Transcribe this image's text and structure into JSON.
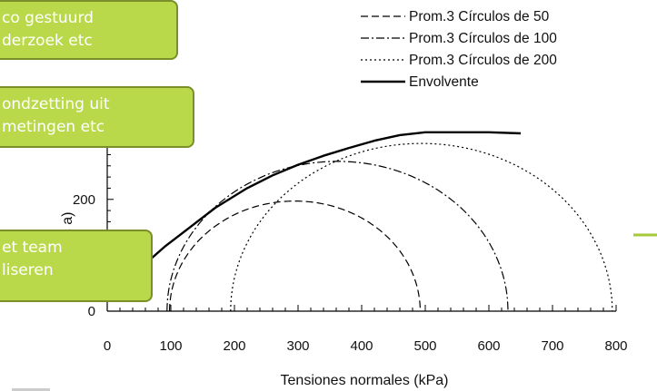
{
  "chart_data": {
    "type": "line",
    "xlabel": "Tensiones normales (kPa)",
    "ylabel_visible": "Te tangenc a)",
    "xlim": [
      0,
      800
    ],
    "ylim": [
      0,
      370
    ],
    "x_ticks": [
      "0",
      "100",
      "200",
      "300",
      "400",
      "500",
      "600",
      "700",
      "800"
    ],
    "y_ticks": [
      "0",
      "200"
    ],
    "grid": false,
    "legend_placement": "top-right",
    "series": [
      {
        "name": "Prom.3 Círculos de 50",
        "style": "dashed",
        "circle": {
          "center": 295,
          "radius": 197
        }
      },
      {
        "name": "Prom.3 Círculos de 100",
        "style": "dashdot",
        "circle": {
          "center": 362,
          "radius": 268
        }
      },
      {
        "name": "Prom.3 Círculos de 200",
        "style": "dotted",
        "circle": {
          "center": 494,
          "radius": 300
        }
      },
      {
        "name": "Envolvente",
        "style": "solid",
        "x": [
          50,
          90,
          130,
          170,
          220,
          260,
          300,
          340,
          380,
          420,
          460,
          500,
          550,
          600,
          650
        ],
        "y": [
          75,
          115,
          150,
          185,
          220,
          243,
          262,
          278,
          292,
          305,
          315,
          320,
          320,
          320,
          318
        ]
      }
    ]
  },
  "callouts": [
    {
      "line1": "co gestuurd",
      "line2": "derzoek etc"
    },
    {
      "line1": "ondzetting uit",
      "line2": "metingen etc"
    },
    {
      "line1": "et team",
      "line2": "liseren"
    }
  ],
  "colors": {
    "callout_fill": "#b9d94a",
    "callout_border": "#7a8f2a",
    "edge_line": "#a6c93a"
  }
}
